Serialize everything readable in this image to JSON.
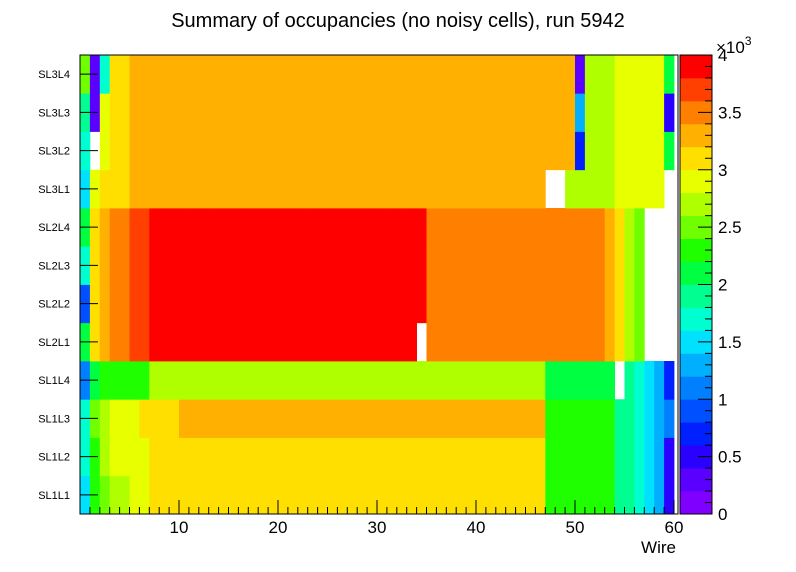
{
  "chart_data": {
    "type": "heatmap",
    "title": "Summary of occupancies (no noisy cells), run 5942",
    "xlabel": "Wire",
    "ylabel": "",
    "x_range": [
      0,
      60
    ],
    "x_ticks": [
      10,
      20,
      30,
      40,
      50,
      60
    ],
    "x_tick_labels": [
      "10",
      "20",
      "30",
      "40",
      "50",
      "60"
    ],
    "z_range": [
      0,
      4000
    ],
    "z_ticks": [
      0,
      0.5,
      1,
      1.5,
      2,
      2.5,
      3,
      3.5,
      4
    ],
    "z_tick_labels": [
      "0",
      "0.5",
      "1",
      "1.5",
      "2",
      "2.5",
      "3",
      "3.5",
      "4"
    ],
    "z_multiplier": "×10",
    "z_multiplier_exponent": "3",
    "rows": [
      "SL1L1",
      "SL1L2",
      "SL1L3",
      "SL1L4",
      "SL2L1",
      "SL2L2",
      "SL2L3",
      "SL2L4",
      "SL3L1",
      "SL3L2",
      "SL3L3",
      "SL3L4"
    ],
    "palette": [
      "#7f00ff",
      "#5a00ff",
      "#2a00ff",
      "#0020ff",
      "#0050ff",
      "#0080ff",
      "#00b0ff",
      "#00e0ff",
      "#00ffd0",
      "#00ff90",
      "#00ff40",
      "#20ff00",
      "#70ff00",
      "#b0ff00",
      "#e8ff00",
      "#ffdf00",
      "#ffb000",
      "#ff8000",
      "#ff4000",
      "#ff0000"
    ],
    "values": [
      [
        1.5,
        2.2,
        2.5,
        2.7,
        2.7,
        2.8,
        2.8,
        3.0,
        3.0,
        3.0,
        3.0,
        3.0,
        3.0,
        3.0,
        3.0,
        3.0,
        3.0,
        3.0,
        3.0,
        3.0,
        3.0,
        3.0,
        3.0,
        3.0,
        3.0,
        3.0,
        3.0,
        3.0,
        3.0,
        3.0,
        3.0,
        3.0,
        3.0,
        3.0,
        3.0,
        3.0,
        3.0,
        3.0,
        3.0,
        3.0,
        3.0,
        3.0,
        3.0,
        3.0,
        3.0,
        3.0,
        3.0,
        2.2,
        2.2,
        2.2,
        2.2,
        2.2,
        2.2,
        2.2,
        1.8,
        1.8,
        1.6,
        1.5,
        1.2,
        0.4
      ],
      [
        1.6,
        2.3,
        2.6,
        2.8,
        2.8,
        2.9,
        2.9,
        3.0,
        3.0,
        3.0,
        3.1,
        3.1,
        3.1,
        3.1,
        3.1,
        3.1,
        3.1,
        3.1,
        3.1,
        3.1,
        3.1,
        3.1,
        3.1,
        3.1,
        3.1,
        3.1,
        3.1,
        3.1,
        3.1,
        3.1,
        3.1,
        3.1,
        3.1,
        3.1,
        3.1,
        3.1,
        3.1,
        3.1,
        3.1,
        3.1,
        3.1,
        3.1,
        3.1,
        3.1,
        3.1,
        3.1,
        3.1,
        2.2,
        2.2,
        2.2,
        2.2,
        2.2,
        2.2,
        2.2,
        1.8,
        1.8,
        1.6,
        1.5,
        1.2,
        0.4
      ],
      [
        1.6,
        2.4,
        2.7,
        2.9,
        2.9,
        2.9,
        3.0,
        3.0,
        3.0,
        3.0,
        3.2,
        3.2,
        3.2,
        3.2,
        3.2,
        3.2,
        3.2,
        3.2,
        3.2,
        3.2,
        3.2,
        3.2,
        3.2,
        3.2,
        3.2,
        3.2,
        3.2,
        3.2,
        3.2,
        3.2,
        3.2,
        3.2,
        3.2,
        3.2,
        3.2,
        3.2,
        3.2,
        3.2,
        3.2,
        3.2,
        3.2,
        3.2,
        3.2,
        3.2,
        3.2,
        3.2,
        3.2,
        2.2,
        2.2,
        2.2,
        2.2,
        2.2,
        2.2,
        2.2,
        1.8,
        1.8,
        1.6,
        1.5,
        1.2,
        1.0
      ],
      [
        1.0,
        2.0,
        2.2,
        2.2,
        2.2,
        2.2,
        2.2,
        2.6,
        2.6,
        2.6,
        2.7,
        2.7,
        2.7,
        2.7,
        2.7,
        2.7,
        2.7,
        2.7,
        2.7,
        2.7,
        2.7,
        2.7,
        2.7,
        2.7,
        2.7,
        2.7,
        2.7,
        2.7,
        2.7,
        2.7,
        2.7,
        2.7,
        2.7,
        2.7,
        2.7,
        2.7,
        2.7,
        2.7,
        2.7,
        2.7,
        2.7,
        2.7,
        2.7,
        2.7,
        2.7,
        2.7,
        2.7,
        2.1,
        2.1,
        2.1,
        2.1,
        2.1,
        2.1,
        2.1,
        null,
        1.8,
        1.6,
        1.5,
        1.2,
        0.6
      ],
      [
        2.0,
        3.1,
        3.3,
        3.5,
        3.5,
        3.6,
        3.7,
        3.9,
        3.9,
        3.9,
        3.9,
        3.9,
        3.9,
        3.9,
        3.9,
        3.9,
        3.9,
        3.9,
        3.9,
        3.9,
        3.9,
        3.9,
        3.9,
        3.9,
        3.9,
        3.9,
        3.9,
        3.9,
        3.9,
        3.9,
        3.9,
        3.9,
        3.9,
        3.9,
        null,
        3.5,
        3.5,
        3.5,
        3.5,
        3.5,
        3.5,
        3.5,
        3.5,
        3.5,
        3.5,
        3.5,
        3.5,
        3.5,
        3.5,
        3.5,
        3.5,
        3.5,
        3.5,
        3.3,
        3.0,
        2.7,
        2.5,
        null,
        null,
        null
      ],
      [
        0.9,
        3.1,
        3.3,
        3.5,
        3.5,
        3.6,
        3.7,
        3.9,
        3.9,
        3.9,
        3.9,
        3.9,
        3.9,
        3.9,
        3.9,
        3.9,
        3.9,
        3.9,
        3.9,
        3.9,
        3.9,
        3.9,
        3.9,
        3.9,
        3.9,
        3.9,
        3.9,
        3.9,
        3.9,
        3.9,
        3.9,
        3.9,
        3.9,
        3.9,
        3.9,
        3.5,
        3.5,
        3.5,
        3.5,
        3.5,
        3.5,
        3.5,
        3.5,
        3.5,
        3.5,
        3.5,
        3.5,
        3.5,
        3.5,
        3.5,
        3.5,
        3.5,
        3.5,
        3.3,
        3.0,
        2.7,
        2.5,
        null,
        null,
        null
      ],
      [
        1.7,
        3.1,
        3.3,
        3.5,
        3.5,
        3.6,
        3.7,
        3.9,
        3.9,
        3.9,
        3.9,
        3.9,
        3.9,
        3.9,
        3.9,
        3.9,
        3.9,
        3.9,
        3.9,
        3.9,
        3.9,
        3.9,
        3.9,
        3.9,
        3.9,
        3.9,
        3.9,
        3.9,
        3.9,
        3.9,
        3.9,
        3.9,
        3.9,
        3.9,
        3.9,
        3.5,
        3.5,
        3.5,
        3.5,
        3.5,
        3.5,
        3.5,
        3.5,
        3.5,
        3.5,
        3.5,
        3.5,
        3.5,
        3.5,
        3.5,
        3.5,
        3.5,
        3.5,
        3.3,
        3.0,
        2.7,
        2.5,
        null,
        null,
        null
      ],
      [
        2.0,
        3.1,
        3.3,
        3.5,
        3.5,
        3.6,
        3.7,
        3.9,
        3.9,
        3.9,
        3.9,
        3.9,
        3.9,
        3.9,
        3.9,
        3.9,
        3.9,
        3.9,
        3.9,
        3.9,
        3.9,
        3.9,
        3.9,
        3.9,
        3.9,
        3.9,
        3.9,
        3.9,
        3.9,
        3.9,
        3.9,
        3.9,
        3.9,
        3.9,
        3.9,
        3.5,
        3.5,
        3.5,
        3.5,
        3.5,
        3.5,
        3.5,
        3.5,
        3.5,
        3.5,
        3.5,
        3.5,
        3.5,
        3.5,
        3.5,
        3.5,
        3.5,
        3.5,
        3.3,
        3.0,
        2.7,
        2.5,
        null,
        null,
        null
      ],
      [
        1.5,
        2.8,
        3.0,
        3.0,
        3.1,
        3.2,
        3.2,
        3.2,
        3.2,
        3.2,
        3.2,
        3.2,
        3.2,
        3.2,
        3.2,
        3.2,
        3.2,
        3.2,
        3.2,
        3.2,
        3.2,
        3.2,
        3.2,
        3.2,
        3.2,
        3.2,
        3.2,
        3.2,
        3.2,
        3.2,
        3.2,
        3.2,
        3.2,
        3.2,
        3.2,
        3.2,
        3.2,
        3.2,
        3.2,
        3.2,
        3.2,
        3.2,
        3.2,
        3.2,
        3.2,
        3.2,
        3.2,
        null,
        null,
        2.6,
        2.6,
        2.6,
        2.6,
        2.7,
        2.8,
        2.9,
        2.9,
        2.9,
        2.9,
        null
      ],
      [
        1.6,
        null,
        2.9,
        3.0,
        3.1,
        3.2,
        3.3,
        3.3,
        3.3,
        3.3,
        3.3,
        3.3,
        3.3,
        3.3,
        3.3,
        3.3,
        3.3,
        3.3,
        3.3,
        3.3,
        3.3,
        3.3,
        3.3,
        3.3,
        3.3,
        3.3,
        3.3,
        3.3,
        3.3,
        3.3,
        3.3,
        3.3,
        3.3,
        3.3,
        3.3,
        3.3,
        3.3,
        3.3,
        3.3,
        3.3,
        3.3,
        3.3,
        3.3,
        3.3,
        3.3,
        3.3,
        3.3,
        3.3,
        3.3,
        3.3,
        0.6,
        2.6,
        2.6,
        2.7,
        2.8,
        2.9,
        2.9,
        2.9,
        2.9,
        2.0
      ],
      [
        1.8,
        0.3,
        2.9,
        3.0,
        3.1,
        3.2,
        3.3,
        3.3,
        3.3,
        3.3,
        3.3,
        3.3,
        3.3,
        3.3,
        3.3,
        3.3,
        3.3,
        3.3,
        3.3,
        3.3,
        3.3,
        3.3,
        3.3,
        3.3,
        3.3,
        3.3,
        3.3,
        3.3,
        3.3,
        3.3,
        3.3,
        3.3,
        3.3,
        3.3,
        3.3,
        3.3,
        3.3,
        3.3,
        3.3,
        3.3,
        3.3,
        3.3,
        3.3,
        3.3,
        3.3,
        3.3,
        3.3,
        3.3,
        3.3,
        3.3,
        1.2,
        2.6,
        2.6,
        2.7,
        2.8,
        2.9,
        2.9,
        2.9,
        2.9,
        0.4
      ],
      [
        2.4,
        0.3,
        1.6,
        3.0,
        3.1,
        3.2,
        3.3,
        3.3,
        3.3,
        3.3,
        3.3,
        3.3,
        3.3,
        3.3,
        3.3,
        3.3,
        3.3,
        3.3,
        3.3,
        3.3,
        3.3,
        3.3,
        3.3,
        3.3,
        3.3,
        3.3,
        3.3,
        3.3,
        3.3,
        3.3,
        3.3,
        3.3,
        3.3,
        3.3,
        3.3,
        3.3,
        3.3,
        3.3,
        3.3,
        3.3,
        3.3,
        3.3,
        3.3,
        3.3,
        3.3,
        3.3,
        3.3,
        3.3,
        3.3,
        3.3,
        0.3,
        2.6,
        2.6,
        2.7,
        2.8,
        2.9,
        2.9,
        2.9,
        2.9,
        2.0
      ]
    ]
  }
}
